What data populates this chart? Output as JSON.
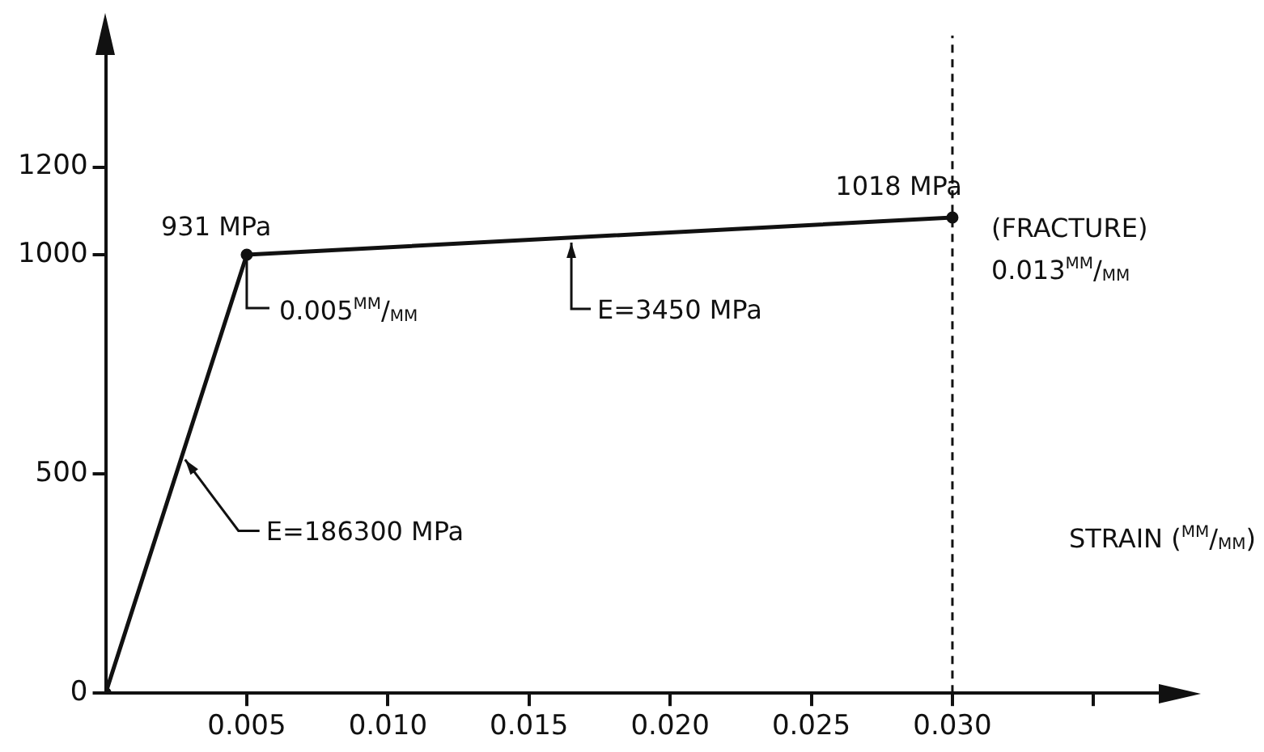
{
  "chart_data": {
    "type": "line",
    "xlabel": "STRAIN ($^{MM}$/$_{MM}$)",
    "x": [
      0,
      0.005,
      0.03
    ],
    "series": [
      {
        "color": "#111111",
        "values": [
          0,
          1000,
          1085
        ]
      }
    ],
    "xlim": [
      0,
      0.038
    ],
    "ylim": [
      0,
      1500
    ],
    "xticks": [
      0.005,
      {
        "value": 0.01,
        "label": "0.010"
      },
      0.015,
      {
        "value": 0.02,
        "label": "0.020"
      },
      0.025,
      {
        "value": 0.03,
        "label": "0.030"
      },
      {
        "value": 0.035,
        "label": null
      }
    ],
    "yticks": [
      0,
      500,
      1000,
      1200
    ],
    "marker": "circle",
    "line_style": "solid",
    "grid": false,
    "legend": false,
    "ref_lines": [
      {
        "axis": "x",
        "value": 0.03,
        "color": "#111111",
        "line_style": "dashed"
      }
    ],
    "annotations": [
      {
        "text": "931 MPa",
        "x": 0.005,
        "y": 1000
      },
      {
        "text": "0.005$^{MM}$/$_{MM}$",
        "x": 0.005,
        "y": 1000
      },
      {
        "text": "E=3450 MPa",
        "x": 0.0165,
        "y": 1039
      },
      {
        "text": "E=186300 MPa",
        "x": 0.0027,
        "y": 540
      },
      {
        "text": "1018 MPa",
        "x": 0.03,
        "y": 1085
      },
      {
        "text": "(FRACTURE)",
        "x": 0.03,
        "y": 1085
      },
      {
        "text": "0.013$^{MM}$/$_{MM}$",
        "x": 0.03,
        "y": 1085
      }
    ]
  }
}
